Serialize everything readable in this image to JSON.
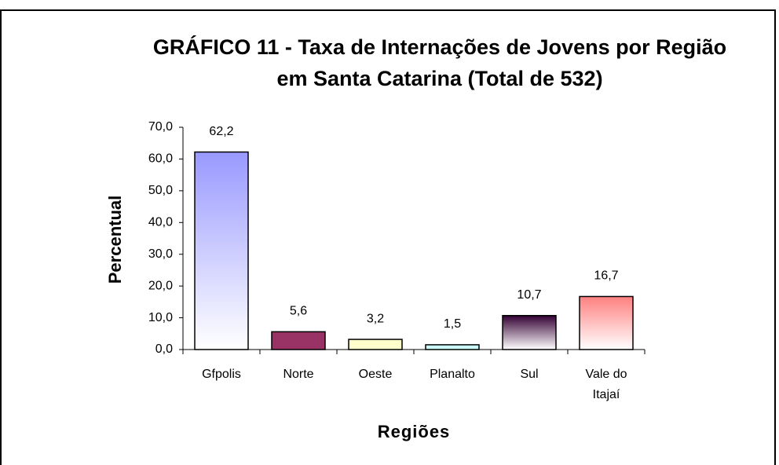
{
  "chart_data": {
    "type": "bar",
    "title": "GRÁFICO 11 - Taxa de Internações de Jovens por Região em Santa Catarina (Total de 532)",
    "x_label": "Regiões",
    "y_label": "Percentual",
    "categories": [
      "Gfpolis",
      "Norte",
      "Oeste",
      "Planalto",
      "Sul",
      "Vale do Itajaí"
    ],
    "values": [
      62.2,
      5.6,
      3.2,
      1.5,
      10.7,
      16.7
    ],
    "value_labels": [
      "62,2",
      "5,6",
      "3,2",
      "1,5",
      "10,7",
      "16,7"
    ],
    "colors": [
      "#9999ff",
      "#993366",
      "#ffffcc",
      "#ccffff",
      "#330033",
      "#ff8080"
    ],
    "gradient": [
      true,
      false,
      false,
      false,
      true,
      true
    ],
    "ylim": [
      0,
      70
    ],
    "yticks": [
      {
        "value": 0,
        "label": "0,0"
      },
      {
        "value": 10,
        "label": "10,0"
      },
      {
        "value": 20,
        "label": "20,0"
      },
      {
        "value": 30,
        "label": "30,0"
      },
      {
        "value": 40,
        "label": "40,0"
      },
      {
        "value": 50,
        "label": "50,0"
      },
      {
        "value": 60,
        "label": "60,0"
      },
      {
        "value": 70,
        "label": "70,0"
      }
    ]
  }
}
